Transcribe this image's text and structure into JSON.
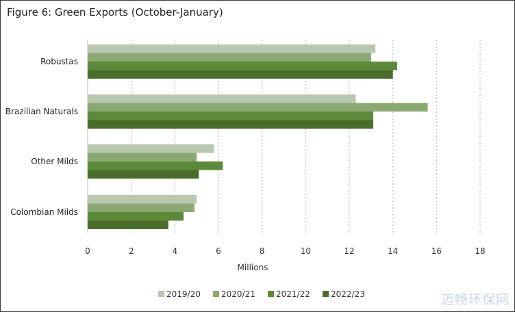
{
  "chart_data": {
    "type": "bar",
    "orientation": "horizontal",
    "title": "Figure 6: Green Exports (October-January)",
    "xlabel": "Millions",
    "ylabel": "",
    "xlim": [
      0,
      18
    ],
    "xticks": [
      0,
      2,
      4,
      6,
      8,
      10,
      12,
      14,
      16,
      18
    ],
    "grid": "vertical-dotted",
    "legend_position": "bottom",
    "categories": [
      "Robustas",
      "Brazilian Naturals",
      "Other Milds",
      "Colombian Milds"
    ],
    "series": [
      {
        "name": "2019/20",
        "color": "#bac8b0",
        "values": [
          13.2,
          12.3,
          5.8,
          5.0
        ]
      },
      {
        "name": "2020/21",
        "color": "#8aa872",
        "values": [
          13.0,
          15.6,
          5.0,
          4.9
        ]
      },
      {
        "name": "2021/22",
        "color": "#5c8a3a",
        "values": [
          14.2,
          13.1,
          6.2,
          4.4
        ]
      },
      {
        "name": "2022/23",
        "color": "#4a6e2a",
        "values": [
          14.0,
          13.1,
          5.1,
          3.7
        ]
      }
    ]
  },
  "watermark": "迈畅环保网"
}
